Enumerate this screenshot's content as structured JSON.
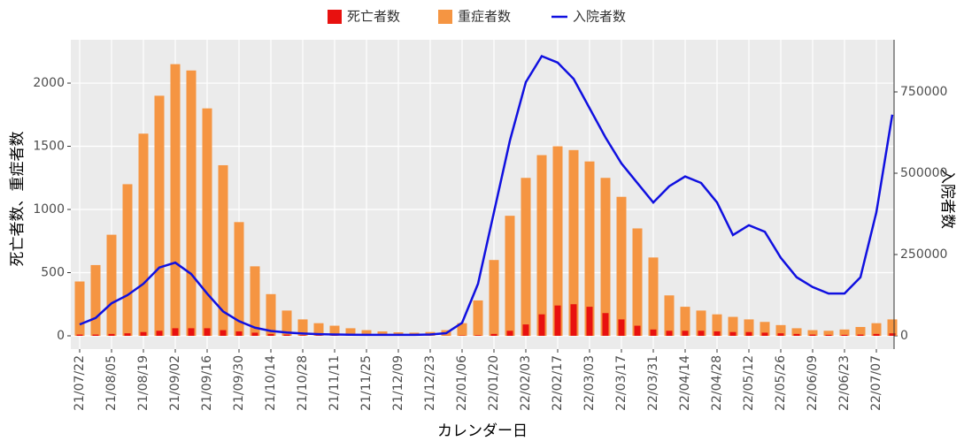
{
  "chart_data": {
    "type": "bar_line",
    "x_label": "カレンダー日",
    "y_label": "死亡者数、重症者数",
    "y2_label": "入院者数",
    "categories": [
      "21/07/22",
      null,
      "21/08/05",
      null,
      "21/08/19",
      null,
      "21/09/02",
      null,
      "21/09/16",
      null,
      "21/09/30",
      null,
      "21/10/14",
      null,
      "21/10/28",
      null,
      "21/11/11",
      null,
      "21/11/25",
      null,
      "21/12/09",
      null,
      "21/12/23",
      null,
      "22/01/06",
      null,
      "22/01/20",
      null,
      "22/02/03",
      null,
      "22/02/17",
      null,
      "22/03/03",
      null,
      "22/03/17",
      null,
      "22/03/31",
      null,
      "22/04/14",
      null,
      "22/04/28",
      null,
      "22/05/12",
      null,
      "22/05/26",
      null,
      "22/06/09",
      null,
      "22/06/23",
      null,
      "22/07/07",
      null
    ],
    "series": [
      {
        "name": "死亡者数",
        "color": "#e8110f",
        "values": [
          10,
          10,
          15,
          20,
          30,
          40,
          60,
          60,
          60,
          45,
          35,
          25,
          15,
          10,
          5,
          4,
          3,
          2,
          2,
          1,
          1,
          1,
          1,
          1,
          3,
          5,
          15,
          40,
          90,
          170,
          240,
          250,
          230,
          180,
          130,
          80,
          50,
          40,
          40,
          40,
          35,
          30,
          30,
          25,
          20,
          15,
          10,
          8,
          8,
          10,
          15,
          20
        ]
      },
      {
        "name": "重症者数",
        "color": "#f59542",
        "values": [
          430,
          560,
          800,
          1200,
          1600,
          1900,
          2150,
          2100,
          1800,
          1350,
          900,
          550,
          330,
          200,
          130,
          100,
          80,
          60,
          45,
          35,
          28,
          25,
          30,
          45,
          100,
          280,
          600,
          950,
          1250,
          1430,
          1500,
          1470,
          1380,
          1250,
          1100,
          850,
          620,
          320,
          230,
          200,
          170,
          150,
          130,
          110,
          85,
          60,
          45,
          40,
          50,
          70,
          100,
          130
        ]
      },
      {
        "name": "入院者数",
        "color": "#1010e0",
        "axis": "y2",
        "values": [
          35000,
          55000,
          100000,
          125000,
          160000,
          210000,
          225000,
          190000,
          130000,
          75000,
          45000,
          25000,
          15000,
          10000,
          7000,
          5000,
          4000,
          3500,
          3000,
          3000,
          3000,
          3000,
          4000,
          8000,
          40000,
          160000,
          380000,
          600000,
          780000,
          860000,
          840000,
          790000,
          700000,
          610000,
          530000,
          470000,
          410000,
          460000,
          490000,
          470000,
          410000,
          310000,
          340000,
          320000,
          240000,
          180000,
          150000,
          130000,
          130000,
          180000,
          380000,
          680000
        ]
      }
    ],
    "ylim": [
      -105,
      2343
    ],
    "yticks": [
      0,
      500,
      1000,
      1500,
      2000
    ],
    "y2lim": [
      -40800,
      910300
    ],
    "y2ticks": [
      0,
      250000,
      500000,
      750000
    ],
    "grid": true
  }
}
